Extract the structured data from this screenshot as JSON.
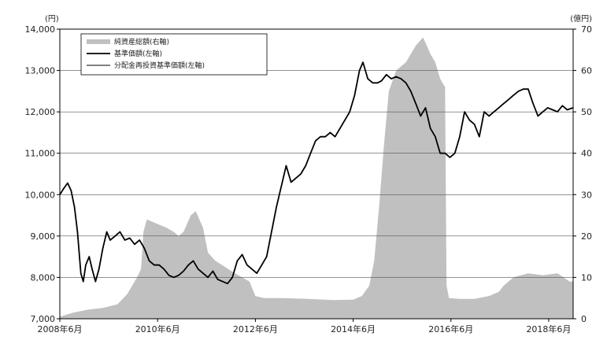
{
  "chart_data": {
    "type": "line",
    "title": "",
    "left_axis": {
      "unit": "(円)",
      "ylim": [
        7000,
        14000
      ],
      "ticks": [
        "7,000",
        "8,000",
        "9,000",
        "10,000",
        "11,000",
        "12,000",
        "13,000",
        "14,000"
      ],
      "tick_values": [
        7000,
        8000,
        9000,
        10000,
        11000,
        12000,
        13000,
        14000
      ]
    },
    "right_axis": {
      "unit": "(億円)",
      "ylim": [
        0,
        70
      ],
      "ticks": [
        "0",
        "10",
        "20",
        "30",
        "40",
        "50",
        "60",
        "70"
      ],
      "tick_values": [
        0,
        10,
        20,
        30,
        40,
        50,
        60,
        70
      ]
    },
    "x_axis": {
      "xlim": [
        2008.42,
        2018.92
      ],
      "ticks": [
        "2008年6月",
        "2010年6月",
        "2012年6月",
        "2014年6月",
        "2016年6月",
        "2018年6月"
      ],
      "tick_values": [
        2008.42,
        2010.42,
        2012.42,
        2014.42,
        2016.42,
        2018.42
      ]
    },
    "grid": true,
    "legend_position": "top-left",
    "series": [
      {
        "name": "純資産総額(右軸)",
        "kind": "area",
        "axis": "right",
        "color": "#c0c0c0",
        "points": [
          [
            2008.42,
            0.5
          ],
          [
            2008.7,
            1.5
          ],
          [
            2009.0,
            2.2
          ],
          [
            2009.3,
            2.6
          ],
          [
            2009.6,
            3.5
          ],
          [
            2009.8,
            6.0
          ],
          [
            2010.0,
            10.0
          ],
          [
            2010.08,
            12.0
          ],
          [
            2010.13,
            21.0
          ],
          [
            2010.2,
            24.0
          ],
          [
            2010.4,
            23.0
          ],
          [
            2010.6,
            22.0
          ],
          [
            2010.75,
            21.0
          ],
          [
            2010.85,
            20.0
          ],
          [
            2010.95,
            21.0
          ],
          [
            2011.1,
            25.0
          ],
          [
            2011.2,
            26.0
          ],
          [
            2011.35,
            22.0
          ],
          [
            2011.45,
            16.0
          ],
          [
            2011.6,
            14.0
          ],
          [
            2011.8,
            12.5
          ],
          [
            2012.0,
            11.0
          ],
          [
            2012.15,
            10.0
          ],
          [
            2012.3,
            9.0
          ],
          [
            2012.42,
            5.5
          ],
          [
            2012.6,
            5.0
          ],
          [
            2013.0,
            5.0
          ],
          [
            2013.5,
            4.8
          ],
          [
            2014.0,
            4.5
          ],
          [
            2014.42,
            4.6
          ],
          [
            2014.6,
            5.5
          ],
          [
            2014.75,
            8.0
          ],
          [
            2014.85,
            14.0
          ],
          [
            2014.95,
            27.0
          ],
          [
            2015.05,
            42.0
          ],
          [
            2015.15,
            55.0
          ],
          [
            2015.3,
            60.0
          ],
          [
            2015.5,
            62.0
          ],
          [
            2015.7,
            66.0
          ],
          [
            2015.85,
            68.0
          ],
          [
            2016.0,
            64.0
          ],
          [
            2016.1,
            62.0
          ],
          [
            2016.2,
            58.0
          ],
          [
            2016.3,
            56.0
          ],
          [
            2016.33,
            8.0
          ],
          [
            2016.38,
            5.0
          ],
          [
            2016.6,
            4.8
          ],
          [
            2016.9,
            4.8
          ],
          [
            2017.2,
            5.5
          ],
          [
            2017.4,
            6.5
          ],
          [
            2017.5,
            8.0
          ],
          [
            2017.7,
            10.0
          ],
          [
            2018.0,
            11.0
          ],
          [
            2018.3,
            10.5
          ],
          [
            2018.6,
            11.0
          ],
          [
            2018.85,
            9.0
          ],
          [
            2018.92,
            9.0
          ]
        ]
      },
      {
        "name": "基準価額(左軸)",
        "kind": "line",
        "axis": "left",
        "color": "#000000",
        "points": [
          [
            2008.42,
            10000
          ],
          [
            2008.5,
            10150
          ],
          [
            2008.58,
            10280
          ],
          [
            2008.65,
            10100
          ],
          [
            2008.72,
            9700
          ],
          [
            2008.78,
            9100
          ],
          [
            2008.85,
            8100
          ],
          [
            2008.9,
            7900
          ],
          [
            2008.95,
            8300
          ],
          [
            2009.02,
            8500
          ],
          [
            2009.08,
            8200
          ],
          [
            2009.15,
            7900
          ],
          [
            2009.22,
            8200
          ],
          [
            2009.3,
            8700
          ],
          [
            2009.38,
            9100
          ],
          [
            2009.45,
            8900
          ],
          [
            2009.55,
            9000
          ],
          [
            2009.65,
            9100
          ],
          [
            2009.75,
            8900
          ],
          [
            2009.85,
            8950
          ],
          [
            2009.95,
            8800
          ],
          [
            2010.05,
            8900
          ],
          [
            2010.15,
            8700
          ],
          [
            2010.25,
            8400
          ],
          [
            2010.35,
            8300
          ],
          [
            2010.45,
            8300
          ],
          [
            2010.55,
            8200
          ],
          [
            2010.65,
            8050
          ],
          [
            2010.75,
            8000
          ],
          [
            2010.85,
            8050
          ],
          [
            2010.95,
            8150
          ],
          [
            2011.05,
            8300
          ],
          [
            2011.15,
            8400
          ],
          [
            2011.25,
            8200
          ],
          [
            2011.35,
            8100
          ],
          [
            2011.45,
            8000
          ],
          [
            2011.55,
            8150
          ],
          [
            2011.65,
            7950
          ],
          [
            2011.75,
            7900
          ],
          [
            2011.85,
            7850
          ],
          [
            2011.95,
            8000
          ],
          [
            2012.05,
            8400
          ],
          [
            2012.15,
            8550
          ],
          [
            2012.25,
            8300
          ],
          [
            2012.35,
            8200
          ],
          [
            2012.45,
            8100
          ],
          [
            2012.55,
            8300
          ],
          [
            2012.65,
            8500
          ],
          [
            2012.75,
            9100
          ],
          [
            2012.85,
            9700
          ],
          [
            2012.95,
            10200
          ],
          [
            2013.05,
            10700
          ],
          [
            2013.15,
            10300
          ],
          [
            2013.25,
            10400
          ],
          [
            2013.35,
            10500
          ],
          [
            2013.45,
            10700
          ],
          [
            2013.55,
            11000
          ],
          [
            2013.65,
            11300
          ],
          [
            2013.75,
            11400
          ],
          [
            2013.85,
            11400
          ],
          [
            2013.95,
            11500
          ],
          [
            2014.05,
            11400
          ],
          [
            2014.15,
            11600
          ],
          [
            2014.25,
            11800
          ],
          [
            2014.35,
            12000
          ],
          [
            2014.45,
            12400
          ],
          [
            2014.55,
            13000
          ],
          [
            2014.62,
            13200
          ],
          [
            2014.72,
            12800
          ],
          [
            2014.82,
            12700
          ],
          [
            2014.92,
            12700
          ],
          [
            2015.0,
            12750
          ],
          [
            2015.1,
            12900
          ],
          [
            2015.2,
            12800
          ],
          [
            2015.3,
            12850
          ],
          [
            2015.4,
            12800
          ],
          [
            2015.5,
            12700
          ],
          [
            2015.6,
            12500
          ],
          [
            2015.7,
            12200
          ],
          [
            2015.8,
            11900
          ],
          [
            2015.9,
            12100
          ],
          [
            2016.0,
            11600
          ],
          [
            2016.1,
            11400
          ],
          [
            2016.2,
            11000
          ],
          [
            2016.3,
            11000
          ],
          [
            2016.4,
            10900
          ],
          [
            2016.5,
            11000
          ],
          [
            2016.6,
            11400
          ],
          [
            2016.7,
            12000
          ],
          [
            2016.8,
            11800
          ],
          [
            2016.9,
            11700
          ],
          [
            2017.0,
            11400
          ],
          [
            2017.1,
            12000
          ],
          [
            2017.2,
            11900
          ],
          [
            2017.3,
            12000
          ],
          [
            2017.4,
            12100
          ],
          [
            2017.5,
            12200
          ],
          [
            2017.6,
            12300
          ],
          [
            2017.7,
            12400
          ],
          [
            2017.8,
            12500
          ],
          [
            2017.9,
            12550
          ],
          [
            2018.0,
            12550
          ],
          [
            2018.1,
            12200
          ],
          [
            2018.2,
            11900
          ],
          [
            2018.3,
            12000
          ],
          [
            2018.4,
            12100
          ],
          [
            2018.5,
            12050
          ],
          [
            2018.6,
            12000
          ],
          [
            2018.7,
            12150
          ],
          [
            2018.8,
            12050
          ],
          [
            2018.92,
            12100
          ]
        ]
      },
      {
        "name": "分配金再投資基準価額(左軸)",
        "kind": "line",
        "axis": "left",
        "color": "#000000",
        "points": [
          [
            2008.42,
            10000
          ],
          [
            2008.5,
            10150
          ],
          [
            2008.58,
            10280
          ],
          [
            2008.65,
            10100
          ],
          [
            2008.72,
            9700
          ],
          [
            2008.78,
            9100
          ],
          [
            2008.85,
            8100
          ],
          [
            2008.9,
            7900
          ],
          [
            2008.95,
            8300
          ],
          [
            2009.02,
            8500
          ],
          [
            2009.08,
            8200
          ],
          [
            2009.15,
            7900
          ],
          [
            2009.22,
            8200
          ],
          [
            2009.3,
            8700
          ],
          [
            2009.38,
            9100
          ],
          [
            2009.45,
            8900
          ],
          [
            2009.55,
            9000
          ],
          [
            2009.65,
            9100
          ],
          [
            2009.75,
            8900
          ],
          [
            2009.85,
            8950
          ],
          [
            2009.95,
            8800
          ],
          [
            2010.05,
            8900
          ],
          [
            2010.15,
            8700
          ],
          [
            2010.25,
            8400
          ],
          [
            2010.35,
            8300
          ],
          [
            2010.45,
            8300
          ],
          [
            2010.55,
            8200
          ],
          [
            2010.65,
            8050
          ],
          [
            2010.75,
            8000
          ],
          [
            2010.85,
            8050
          ],
          [
            2010.95,
            8150
          ],
          [
            2011.05,
            8300
          ],
          [
            2011.15,
            8400
          ],
          [
            2011.25,
            8200
          ],
          [
            2011.35,
            8100
          ],
          [
            2011.45,
            8000
          ],
          [
            2011.55,
            8150
          ],
          [
            2011.65,
            7950
          ],
          [
            2011.75,
            7900
          ],
          [
            2011.85,
            7850
          ],
          [
            2011.95,
            8000
          ],
          [
            2012.05,
            8400
          ],
          [
            2012.15,
            8550
          ],
          [
            2012.25,
            8300
          ],
          [
            2012.35,
            8200
          ],
          [
            2012.45,
            8100
          ],
          [
            2012.55,
            8300
          ],
          [
            2012.65,
            8500
          ],
          [
            2012.75,
            9100
          ],
          [
            2012.85,
            9700
          ],
          [
            2012.95,
            10200
          ],
          [
            2013.05,
            10700
          ],
          [
            2013.15,
            10300
          ],
          [
            2013.25,
            10400
          ],
          [
            2013.35,
            10500
          ],
          [
            2013.45,
            10700
          ],
          [
            2013.55,
            11000
          ],
          [
            2013.65,
            11300
          ],
          [
            2013.75,
            11400
          ],
          [
            2013.85,
            11400
          ],
          [
            2013.95,
            11500
          ],
          [
            2014.05,
            11400
          ],
          [
            2014.15,
            11600
          ],
          [
            2014.25,
            11800
          ],
          [
            2014.35,
            12000
          ],
          [
            2014.45,
            12400
          ],
          [
            2014.55,
            13000
          ],
          [
            2014.62,
            13200
          ],
          [
            2014.72,
            12800
          ],
          [
            2014.82,
            12700
          ],
          [
            2014.92,
            12700
          ],
          [
            2015.0,
            12750
          ],
          [
            2015.1,
            12900
          ],
          [
            2015.2,
            12800
          ],
          [
            2015.3,
            12850
          ],
          [
            2015.4,
            12800
          ],
          [
            2015.5,
            12700
          ],
          [
            2015.6,
            12500
          ],
          [
            2015.7,
            12200
          ],
          [
            2015.8,
            11900
          ],
          [
            2015.9,
            12100
          ],
          [
            2016.0,
            11600
          ],
          [
            2016.1,
            11400
          ],
          [
            2016.2,
            11000
          ],
          [
            2016.3,
            11000
          ],
          [
            2016.4,
            10900
          ],
          [
            2016.5,
            11000
          ],
          [
            2016.6,
            11400
          ],
          [
            2016.7,
            12000
          ],
          [
            2016.8,
            11800
          ],
          [
            2016.9,
            11700
          ],
          [
            2017.0,
            11400
          ],
          [
            2017.1,
            12000
          ],
          [
            2017.2,
            11900
          ],
          [
            2017.3,
            12000
          ],
          [
            2017.4,
            12100
          ],
          [
            2017.5,
            12200
          ],
          [
            2017.6,
            12300
          ],
          [
            2017.7,
            12400
          ],
          [
            2017.8,
            12500
          ],
          [
            2017.9,
            12550
          ],
          [
            2018.0,
            12550
          ],
          [
            2018.1,
            12200
          ],
          [
            2018.2,
            11900
          ],
          [
            2018.3,
            12000
          ],
          [
            2018.4,
            12100
          ],
          [
            2018.5,
            12050
          ],
          [
            2018.6,
            12000
          ],
          [
            2018.7,
            12150
          ],
          [
            2018.8,
            12050
          ],
          [
            2018.92,
            12100
          ]
        ]
      }
    ]
  }
}
